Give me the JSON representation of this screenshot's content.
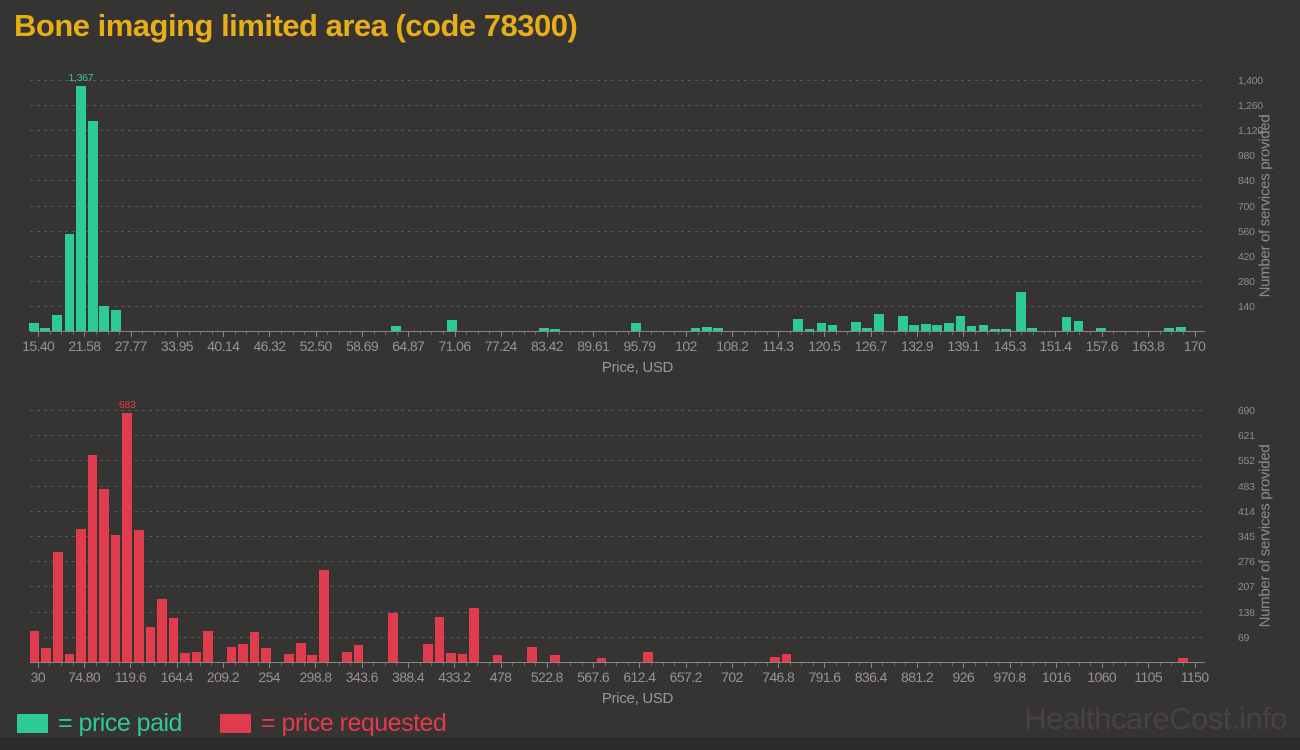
{
  "title": "Bone imaging limited area (code 78300)",
  "watermark": "HealthcareCost.info",
  "colors": {
    "background": "#363333",
    "title": "#e6ae17",
    "paid_green": "#2dcb94",
    "requested_red": "#e03c4e",
    "tick_text": "#979393",
    "watermark_text": "#474343"
  },
  "legend": {
    "items": [
      {
        "label": "= price paid",
        "color": "#2dcb94"
      },
      {
        "label": "= price requested",
        "color": "#e03c4e"
      }
    ]
  },
  "chart_data": [
    {
      "type": "bar",
      "name": "price-paid-histogram",
      "series_label": "price paid",
      "color": "#2dcb94",
      "xlabel": "Price, USD",
      "ylabel": "Number of services provided",
      "xlim": [
        14.3,
        171.4
      ],
      "ylim": [
        0,
        1400
      ],
      "grid": "dashed-horizontal",
      "x_ticks": [
        "15.40",
        "21.58",
        "27.77",
        "33.95",
        "40.14",
        "46.32",
        "52.50",
        "58.69",
        "64.87",
        "71.06",
        "77.24",
        "83.42",
        "89.61",
        "95.79",
        "102",
        "108.2",
        "114.3",
        "120.5",
        "126.7",
        "132.9",
        "139.1",
        "145.3",
        "151.4",
        "157.6",
        "163.8",
        "170"
      ],
      "y_ticks": [
        "140",
        "280",
        "420",
        "560",
        "700",
        "840",
        "980",
        "1,120",
        "1,260",
        "1,400"
      ],
      "peak_label": "1,367",
      "bars": [
        [
          14.8,
          47
        ],
        [
          16.3,
          19
        ],
        [
          17.9,
          90
        ],
        [
          19.6,
          542
        ],
        [
          21.1,
          1367
        ],
        [
          22.7,
          1171
        ],
        [
          24.2,
          140
        ],
        [
          25.8,
          116
        ],
        [
          63.2,
          30
        ],
        [
          70.7,
          64
        ],
        [
          83.0,
          18
        ],
        [
          84.5,
          13
        ],
        [
          95.3,
          45
        ],
        [
          103.3,
          16
        ],
        [
          104.8,
          25
        ],
        [
          106.3,
          16
        ],
        [
          117.0,
          69
        ],
        [
          118.5,
          10
        ],
        [
          120.1,
          42
        ],
        [
          121.6,
          36
        ],
        [
          124.7,
          51
        ],
        [
          126.2,
          15
        ],
        [
          127.8,
          95
        ],
        [
          131.0,
          82
        ],
        [
          132.5,
          36
        ],
        [
          134.1,
          40
        ],
        [
          135.6,
          33
        ],
        [
          137.2,
          45
        ],
        [
          138.7,
          86
        ],
        [
          140.2,
          27
        ],
        [
          141.8,
          36
        ],
        [
          143.3,
          13
        ],
        [
          144.8,
          9
        ],
        [
          146.8,
          218
        ],
        [
          148.3,
          15
        ],
        [
          152.9,
          77
        ],
        [
          154.5,
          58
        ],
        [
          157.5,
          15
        ],
        [
          166.6,
          15
        ],
        [
          168.2,
          25
        ]
      ]
    },
    {
      "type": "bar",
      "name": "price-requested-histogram",
      "series_label": "price requested",
      "color": "#e03c4e",
      "xlabel": "Price, USD",
      "ylabel": "Number of services provided",
      "xlim": [
        22.4,
        1160
      ],
      "ylim": [
        0,
        690
      ],
      "grid": "dashed-horizontal",
      "x_ticks": [
        "30",
        "74.80",
        "119.6",
        "164.4",
        "209.2",
        "254",
        "298.8",
        "343.6",
        "388.4",
        "433.2",
        "478",
        "522.8",
        "567.6",
        "612.4",
        "657.2",
        "702",
        "746.8",
        "791.6",
        "836.4",
        "881.2",
        "926",
        "970.8",
        "1016",
        "1060",
        "1105",
        "1150"
      ],
      "y_ticks": [
        "69",
        "138",
        "207",
        "276",
        "345",
        "414",
        "483",
        "552",
        "621",
        "690"
      ],
      "peak_label": "683",
      "bars": [
        [
          26.9,
          84
        ],
        [
          38.1,
          38
        ],
        [
          49.3,
          300
        ],
        [
          60.5,
          23
        ],
        [
          71.7,
          363
        ],
        [
          82.9,
          566
        ],
        [
          94.1,
          473
        ],
        [
          105.3,
          347
        ],
        [
          116.5,
          683
        ],
        [
          127.7,
          362
        ],
        [
          138.9,
          96
        ],
        [
          150.1,
          173
        ],
        [
          161.3,
          120
        ],
        [
          172.5,
          25
        ],
        [
          183.7,
          27
        ],
        [
          194.9,
          84
        ],
        [
          217.3,
          41
        ],
        [
          228.5,
          50
        ],
        [
          239.7,
          82
        ],
        [
          250.9,
          38
        ],
        [
          273.3,
          21
        ],
        [
          284.5,
          53
        ],
        [
          295.7,
          18
        ],
        [
          306.9,
          251
        ],
        [
          329.3,
          28
        ],
        [
          340.5,
          46
        ],
        [
          374.1,
          134
        ],
        [
          407.7,
          50
        ],
        [
          418.9,
          123
        ],
        [
          430.1,
          25
        ],
        [
          441.3,
          22
        ],
        [
          452.5,
          148
        ],
        [
          474.9,
          20
        ],
        [
          508.5,
          41
        ],
        [
          530.9,
          19
        ],
        [
          575.7,
          11
        ],
        [
          620.5,
          27
        ],
        [
          743.7,
          13
        ],
        [
          754.9,
          22
        ],
        [
          1138.5,
          10
        ]
      ]
    }
  ]
}
